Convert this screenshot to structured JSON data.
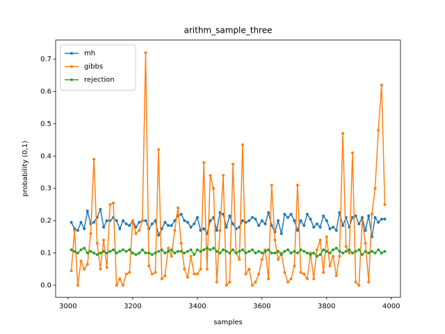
{
  "chart_data": {
    "type": "line",
    "title": "arithm_sample_three",
    "xlabel": "samples",
    "ylabel": "probability (0,1)",
    "x": [
      3010,
      3020,
      3030,
      3040,
      3050,
      3060,
      3070,
      3080,
      3090,
      3100,
      3110,
      3120,
      3130,
      3140,
      3150,
      3160,
      3170,
      3180,
      3190,
      3200,
      3210,
      3220,
      3230,
      3240,
      3250,
      3260,
      3270,
      3280,
      3290,
      3300,
      3310,
      3320,
      3330,
      3340,
      3350,
      3360,
      3370,
      3380,
      3390,
      3400,
      3410,
      3420,
      3430,
      3440,
      3450,
      3460,
      3470,
      3480,
      3490,
      3500,
      3510,
      3520,
      3530,
      3540,
      3550,
      3560,
      3570,
      3580,
      3590,
      3600,
      3610,
      3620,
      3630,
      3640,
      3650,
      3660,
      3670,
      3680,
      3690,
      3700,
      3710,
      3720,
      3730,
      3740,
      3750,
      3760,
      3770,
      3780,
      3790,
      3800,
      3810,
      3820,
      3830,
      3840,
      3850,
      3860,
      3870,
      3880,
      3890,
      3900,
      3910,
      3920,
      3930,
      3940,
      3950,
      3960,
      3970,
      3980
    ],
    "series": [
      {
        "name": "mh",
        "color": "#1f77b4",
        "values": [
          0.195,
          0.175,
          0.17,
          0.195,
          0.175,
          0.23,
          0.19,
          0.195,
          0.21,
          0.235,
          0.18,
          0.2,
          0.2,
          0.21,
          0.2,
          0.175,
          0.2,
          0.19,
          0.185,
          0.2,
          0.18,
          0.195,
          0.2,
          0.2,
          0.175,
          0.19,
          0.2,
          0.155,
          0.175,
          0.195,
          0.185,
          0.185,
          0.2,
          0.215,
          0.22,
          0.2,
          0.195,
          0.18,
          0.19,
          0.21,
          0.17,
          0.175,
          0.16,
          0.2,
          0.21,
          0.17,
          0.225,
          0.22,
          0.18,
          0.215,
          0.19,
          0.175,
          0.18,
          0.2,
          0.195,
          0.2,
          0.21,
          0.205,
          0.185,
          0.2,
          0.19,
          0.225,
          0.185,
          0.165,
          0.2,
          0.16,
          0.22,
          0.21,
          0.22,
          0.2,
          0.17,
          0.2,
          0.185,
          0.22,
          0.205,
          0.18,
          0.19,
          0.18,
          0.215,
          0.2,
          0.175,
          0.18,
          0.17,
          0.225,
          0.185,
          0.21,
          0.18,
          0.21,
          0.215,
          0.19,
          0.21,
          0.17,
          0.215,
          0.15,
          0.21,
          0.195,
          0.205,
          0.205
        ]
      },
      {
        "name": "gibbs",
        "color": "#ff7f0e",
        "values": [
          0.045,
          0.17,
          0.0,
          0.075,
          0.05,
          0.065,
          0.16,
          0.39,
          0.13,
          0.05,
          0.14,
          0.055,
          0.25,
          0.255,
          0.0,
          0.02,
          0.0,
          0.035,
          0.04,
          0.2,
          0.16,
          0.17,
          0.2,
          0.72,
          0.06,
          0.035,
          0.04,
          0.42,
          0.02,
          0.03,
          0.115,
          0.09,
          0.17,
          0.24,
          0.13,
          0.05,
          0.025,
          0.09,
          0.035,
          0.035,
          0.05,
          0.38,
          0.05,
          0.34,
          0.3,
          0.01,
          0.17,
          0.34,
          0.0,
          0.01,
          0.375,
          0.1,
          0.08,
          0.435,
          0.035,
          0.05,
          0.0,
          0.01,
          0.035,
          0.08,
          0.11,
          0.02,
          0.31,
          0.14,
          0.08,
          0.1,
          0.04,
          0.01,
          0.02,
          0.06,
          0.31,
          0.04,
          0.035,
          0.02,
          0.1,
          0.02,
          0.11,
          0.14,
          0.04,
          0.15,
          0.06,
          0.09,
          0.03,
          0.09,
          0.47,
          0.12,
          0.1,
          0.41,
          0.01,
          0.0,
          0.2,
          0.13,
          0.01,
          0.22,
          0.3,
          0.48,
          0.62,
          0.25
        ]
      },
      {
        "name": "rejection",
        "color": "#2ca02c",
        "values": [
          0.11,
          0.105,
          0.1,
          0.11,
          0.115,
          0.1,
          0.105,
          0.1,
          0.095,
          0.1,
          0.105,
          0.1,
          0.105,
          0.11,
          0.1,
          0.105,
          0.11,
          0.105,
          0.11,
          0.1,
          0.095,
          0.1,
          0.11,
          0.1,
          0.1,
          0.095,
          0.1,
          0.105,
          0.11,
          0.1,
          0.105,
          0.11,
          0.1,
          0.105,
          0.105,
          0.1,
          0.105,
          0.11,
          0.095,
          0.11,
          0.105,
          0.11,
          0.115,
          0.11,
          0.115,
          0.105,
          0.1,
          0.11,
          0.105,
          0.1,
          0.11,
          0.1,
          0.105,
          0.11,
          0.1,
          0.105,
          0.11,
          0.1,
          0.105,
          0.1,
          0.105,
          0.11,
          0.1,
          0.1,
          0.105,
          0.095,
          0.105,
          0.11,
          0.1,
          0.105,
          0.1,
          0.11,
          0.105,
          0.1,
          0.095,
          0.1,
          0.09,
          0.095,
          0.11,
          0.105,
          0.1,
          0.11,
          0.115,
          0.105,
          0.1,
          0.105,
          0.11,
          0.1,
          0.105,
          0.11,
          0.095,
          0.105,
          0.1,
          0.105,
          0.1,
          0.11,
          0.1,
          0.105
        ]
      }
    ],
    "xlim": [
      2961.5,
      4028.5
    ],
    "xticks": [
      3000,
      3200,
      3400,
      3600,
      3800,
      4000
    ],
    "ylim": [
      -0.037,
      0.759
    ],
    "yticks": [
      {
        "value": 0,
        "label": "0.0"
      },
      0.1,
      0.2,
      0.3,
      0.4,
      0.5,
      0.6,
      0.7
    ],
    "legend": "upper left",
    "markers": true
  }
}
